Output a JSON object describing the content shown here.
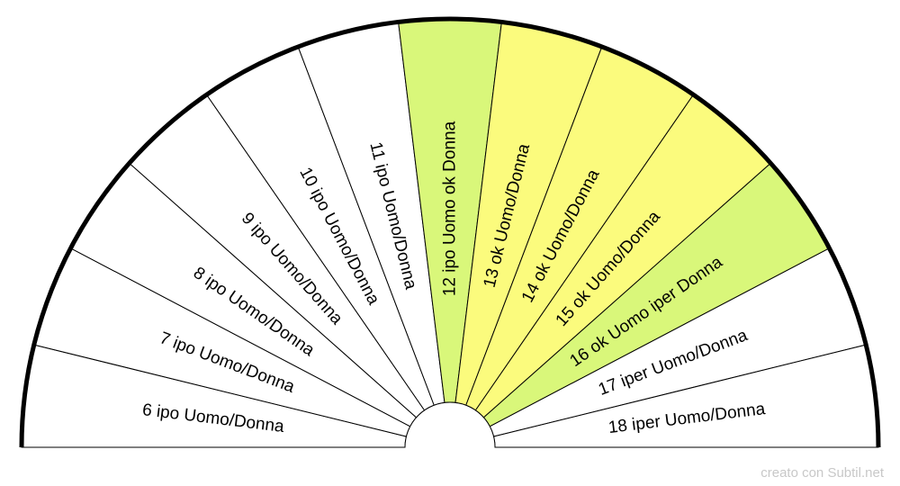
{
  "chart_data": {
    "type": "semicircle-dial",
    "segments": [
      {
        "label": "6 ipo Uomo/Donna",
        "color": "#ffffff"
      },
      {
        "label": "7 ipo Uomo/Donna",
        "color": "#ffffff"
      },
      {
        "label": "8 ipo Uomo/Donna",
        "color": "#ffffff"
      },
      {
        "label": "9 ipo Uomo/Donna",
        "color": "#ffffff"
      },
      {
        "label": "10 ipo Uomo/Donna",
        "color": "#ffffff"
      },
      {
        "label": "11 ipo Uomo/Donna",
        "color": "#ffffff"
      },
      {
        "label": "12 ipo Uomo ok Donna",
        "color": "#d9f77a"
      },
      {
        "label": "13 ok Uomo/Donna",
        "color": "#fbfb7d"
      },
      {
        "label": "14 ok Uomo/Donna",
        "color": "#fbfb7d"
      },
      {
        "label": "15 ok Uomo/Donna",
        "color": "#fbfb7d"
      },
      {
        "label": "16 ok Uomo iper Donna",
        "color": "#d9f77a"
      },
      {
        "label": "17 iper Uomo/Donna",
        "color": "#ffffff"
      },
      {
        "label": "18 iper Uomo/Donna",
        "color": "#ffffff"
      }
    ]
  },
  "credit": "creato con Subtil.net"
}
